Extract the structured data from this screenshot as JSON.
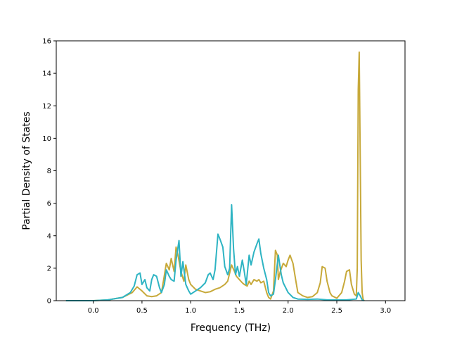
{
  "chart_data": {
    "type": "line",
    "title": "",
    "xlabel": "Frequency (THz)",
    "ylabel": "Partial Density of States",
    "xlim": [
      -0.38,
      3.2
    ],
    "ylim": [
      0,
      16
    ],
    "x_ticks": [
      "0.0",
      "0.5",
      "1.0",
      "1.5",
      "2.0",
      "2.5",
      "3.0"
    ],
    "y_ticks": [
      "0",
      "2",
      "4",
      "6",
      "8",
      "10",
      "12",
      "14",
      "16"
    ],
    "grid": false,
    "legend": "none",
    "series": [
      {
        "color": "#c7a93a",
        "x": [
          -0.28,
          0.0,
          0.15,
          0.3,
          0.4,
          0.45,
          0.5,
          0.55,
          0.6,
          0.65,
          0.7,
          0.72,
          0.75,
          0.78,
          0.8,
          0.83,
          0.85,
          0.87,
          0.9,
          0.93,
          0.95,
          0.98,
          1.0,
          1.05,
          1.1,
          1.15,
          1.2,
          1.25,
          1.3,
          1.35,
          1.38,
          1.4,
          1.42,
          1.45,
          1.47,
          1.5,
          1.53,
          1.55,
          1.58,
          1.6,
          1.62,
          1.65,
          1.68,
          1.7,
          1.72,
          1.75,
          1.78,
          1.8,
          1.82,
          1.85,
          1.87,
          1.89,
          1.9,
          1.92,
          1.95,
          1.98,
          2.0,
          2.02,
          2.05,
          2.08,
          2.1,
          2.15,
          2.2,
          2.25,
          2.3,
          2.33,
          2.35,
          2.38,
          2.4,
          2.43,
          2.45,
          2.5,
          2.55,
          2.58,
          2.6,
          2.63,
          2.65,
          2.68,
          2.7,
          2.71,
          2.72,
          2.73,
          2.74,
          2.75,
          2.76,
          2.77,
          2.78
        ],
        "values": [
          0,
          0,
          0.05,
          0.2,
          0.5,
          0.85,
          0.6,
          0.3,
          0.25,
          0.3,
          0.5,
          1.2,
          2.3,
          1.9,
          2.6,
          1.8,
          3.3,
          2.8,
          1.8,
          1.2,
          2.2,
          1.3,
          1.0,
          0.7,
          0.6,
          0.5,
          0.55,
          0.7,
          0.8,
          1.0,
          1.2,
          1.7,
          2.2,
          1.8,
          1.5,
          1.3,
          1.1,
          1.0,
          0.9,
          1.2,
          1.0,
          1.3,
          1.2,
          1.3,
          1.1,
          1.2,
          0.5,
          0.2,
          0.1,
          0.6,
          3.1,
          2.8,
          1.3,
          1.8,
          2.3,
          2.1,
          2.5,
          2.8,
          2.3,
          1.2,
          0.5,
          0.3,
          0.2,
          0.25,
          0.5,
          1.1,
          2.1,
          2.0,
          1.2,
          0.5,
          0.3,
          0.15,
          0.5,
          1.2,
          1.8,
          1.9,
          1.0,
          0.4,
          0.3,
          2.0,
          13.0,
          15.3,
          9.0,
          2.5,
          0.5,
          0.1,
          0
        ]
      },
      {
        "color": "#2eb4c3",
        "x": [
          -0.28,
          0.0,
          0.15,
          0.3,
          0.38,
          0.42,
          0.45,
          0.48,
          0.5,
          0.53,
          0.55,
          0.58,
          0.6,
          0.62,
          0.65,
          0.68,
          0.7,
          0.73,
          0.75,
          0.78,
          0.8,
          0.83,
          0.85,
          0.88,
          0.9,
          0.92,
          0.95,
          0.98,
          1.0,
          1.05,
          1.1,
          1.15,
          1.18,
          1.2,
          1.23,
          1.25,
          1.28,
          1.3,
          1.33,
          1.35,
          1.38,
          1.4,
          1.42,
          1.44,
          1.46,
          1.48,
          1.5,
          1.53,
          1.55,
          1.57,
          1.6,
          1.62,
          1.65,
          1.68,
          1.7,
          1.72,
          1.75,
          1.78,
          1.8,
          1.82,
          1.85,
          1.87,
          1.9,
          1.93,
          1.95,
          2.0,
          2.05,
          2.1,
          2.2,
          2.3,
          2.4,
          2.5,
          2.6,
          2.7,
          2.72,
          2.74,
          2.76,
          2.78
        ],
        "values": [
          0,
          0,
          0.05,
          0.2,
          0.5,
          0.9,
          1.6,
          1.7,
          1.0,
          1.3,
          0.8,
          0.6,
          1.3,
          1.6,
          1.5,
          0.8,
          0.5,
          1.0,
          1.9,
          1.5,
          1.3,
          1.2,
          2.5,
          3.7,
          1.5,
          2.4,
          1.0,
          0.6,
          0.4,
          0.6,
          0.8,
          1.1,
          1.6,
          1.7,
          1.3,
          1.9,
          4.1,
          3.8,
          3.3,
          2.1,
          1.6,
          2.0,
          5.9,
          3.2,
          1.6,
          2.1,
          1.5,
          2.5,
          1.8,
          1.0,
          2.8,
          2.2,
          3.0,
          3.5,
          3.8,
          2.9,
          2.0,
          1.3,
          0.5,
          0.3,
          0.4,
          1.3,
          2.8,
          1.6,
          1.1,
          0.5,
          0.2,
          0.1,
          0.08,
          0.1,
          0.05,
          0.05,
          0.05,
          0.1,
          0.5,
          0.3,
          0.05,
          0
        ]
      }
    ]
  }
}
